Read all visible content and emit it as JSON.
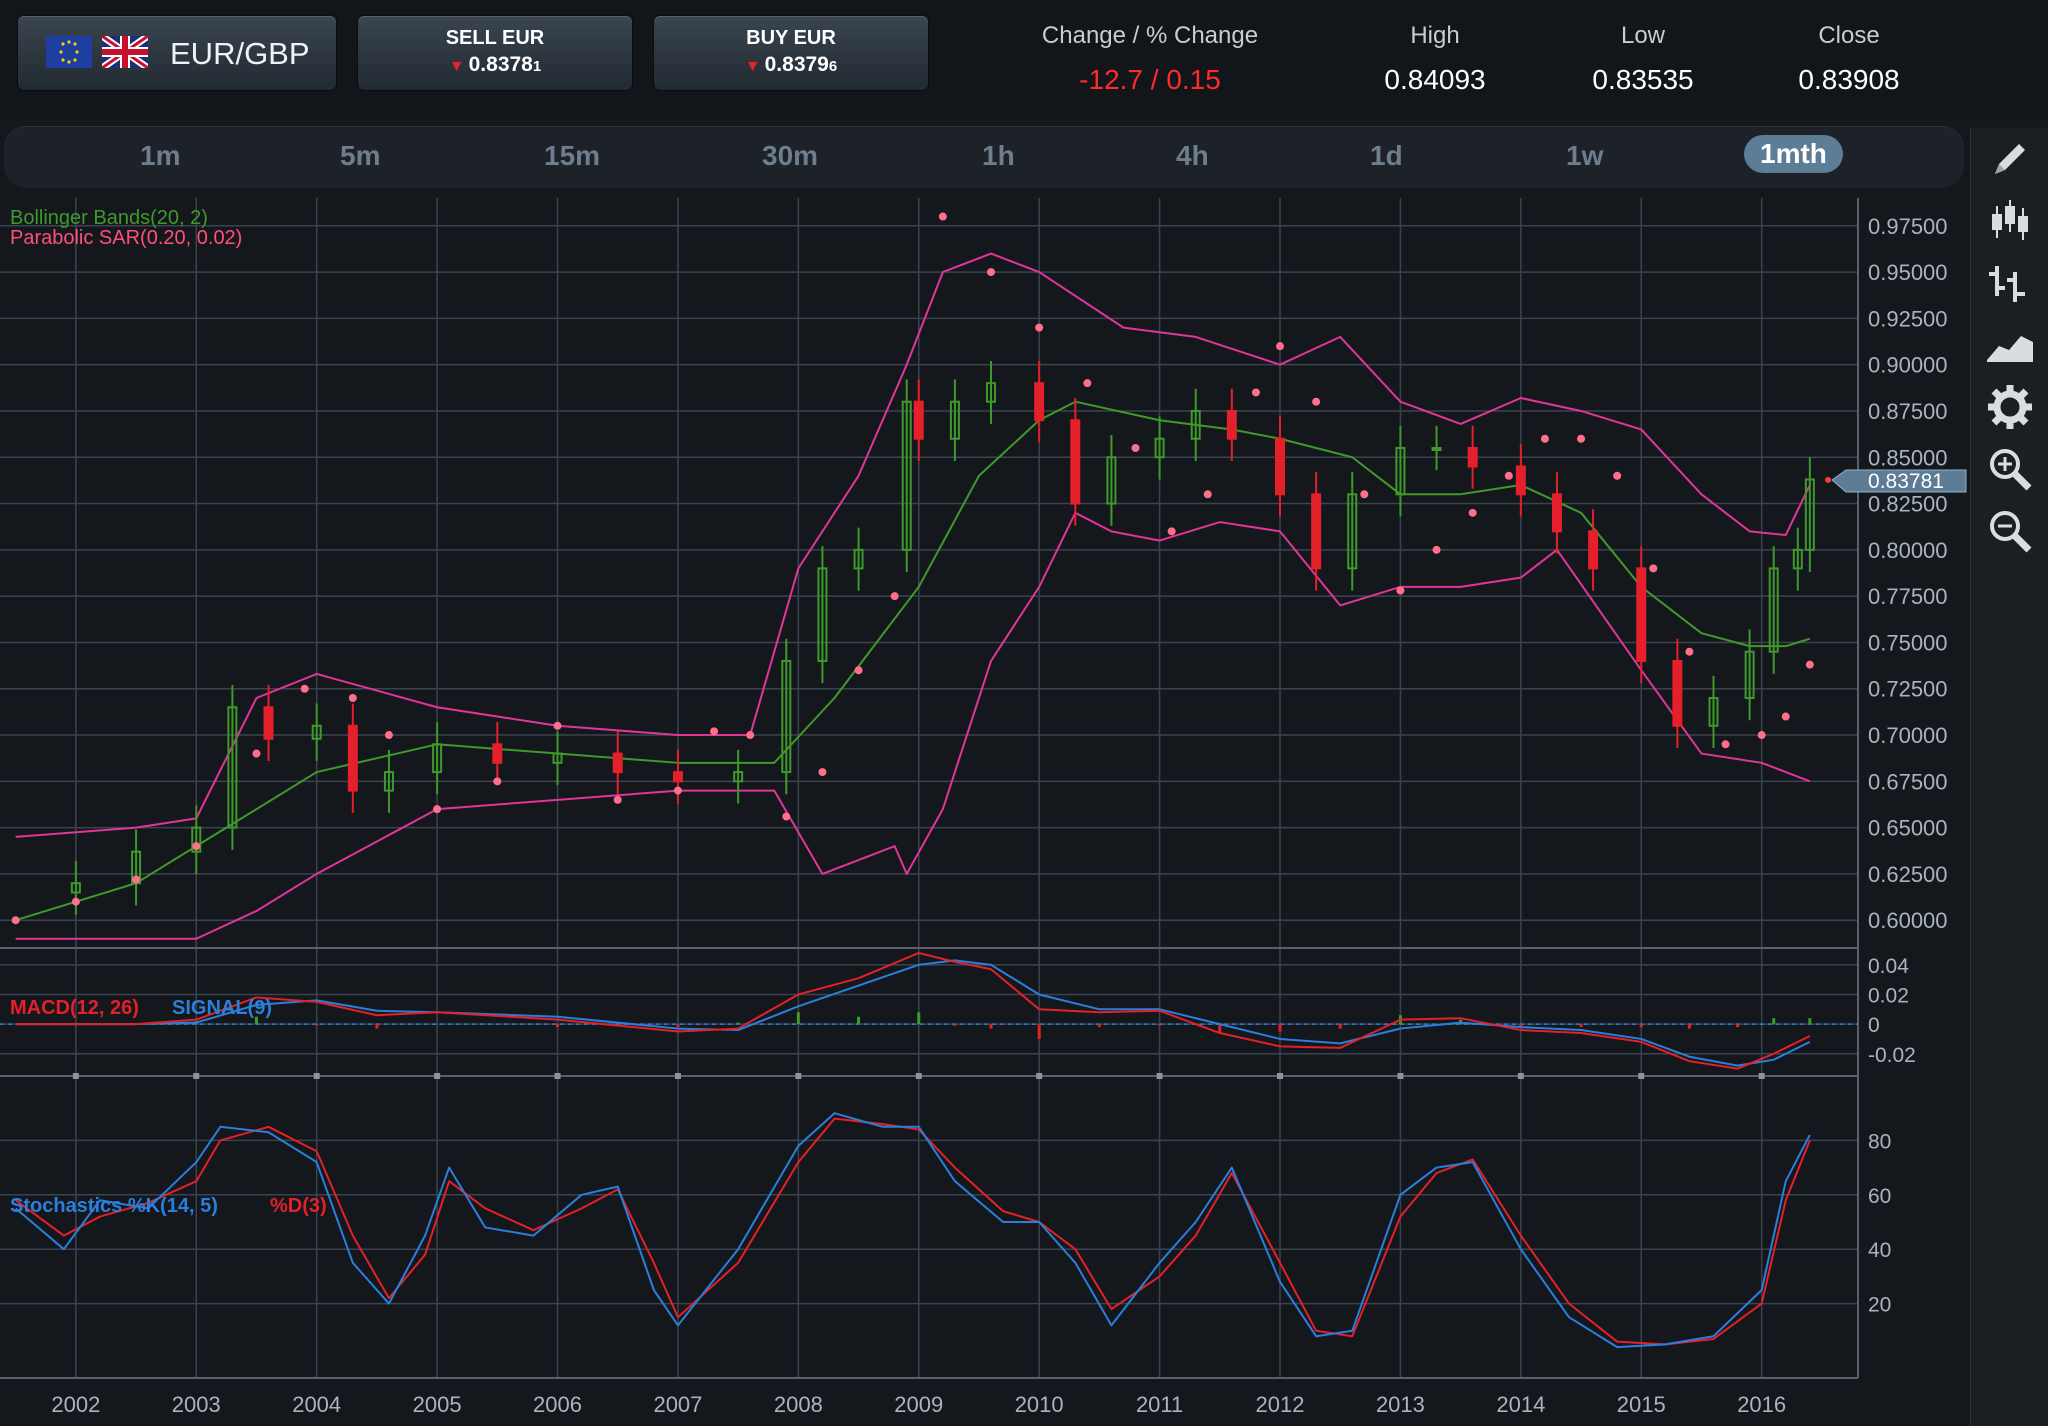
{
  "instrument": {
    "pair": "EUR/GBP",
    "base_flag": "eu-flag-icon",
    "quote_flag": "uk-flag-icon"
  },
  "sell": {
    "label": "SELL EUR",
    "price_main": "0.8378",
    "price_pip": "1",
    "direction": "down"
  },
  "buy": {
    "label": "BUY EUR",
    "price_main": "0.8379",
    "price_pip": "6",
    "direction": "down"
  },
  "stats": {
    "change_header": "Change / % Change",
    "change_value": "-12.7 / 0.15",
    "high_header": "High",
    "high_value": "0.84093",
    "low_header": "Low",
    "low_value": "0.83535",
    "close_header": "Close",
    "close_value": "0.83908"
  },
  "timeframes": [
    {
      "label": "1m",
      "active": false
    },
    {
      "label": "5m",
      "active": false
    },
    {
      "label": "15m",
      "active": false
    },
    {
      "label": "30m",
      "active": false
    },
    {
      "label": "1h",
      "active": false
    },
    {
      "label": "4h",
      "active": false
    },
    {
      "label": "1d",
      "active": false
    },
    {
      "label": "1w",
      "active": false
    },
    {
      "label": "1mth",
      "active": true
    }
  ],
  "tools": [
    "pencil-icon",
    "candlestick-icon",
    "ohlc-bars-icon",
    "area-chart-icon",
    "gear-icon",
    "zoom-in-icon",
    "zoom-out-icon"
  ],
  "colors": {
    "up": "#3e9a2a",
    "down": "#e4202a",
    "bb_band": "#e0359a",
    "bb_mid": "#3e9a2a",
    "sar": "#ff6f8c",
    "macd": "#e4202a",
    "signal": "#2a7fdc",
    "stoch_k": "#2a7fdc",
    "stoch_d": "#e4202a",
    "grid": "#3a4450"
  },
  "chart_data": {
    "type": "line",
    "price_panel": {
      "indicator_bb": "Bollinger Bands(20, 2)",
      "indicator_sar": "Parabolic SAR(0.20, 0.02)",
      "y_ticks": [
        "0.97500",
        "0.95000",
        "0.92500",
        "0.90000",
        "0.87500",
        "0.85000",
        "0.82500",
        "0.80000",
        "0.77500",
        "0.75000",
        "0.72500",
        "0.70000",
        "0.67500",
        "0.65000",
        "0.62500",
        "0.60000"
      ],
      "ylim": [
        0.585,
        0.99
      ],
      "current_price_label": "0.83781",
      "current_price": 0.83781,
      "close_series": {
        "x": [
          2001.5,
          2002.0,
          2002.5,
          2003.0,
          2003.3,
          2003.6,
          2004.0,
          2004.3,
          2004.6,
          2005.0,
          2005.5,
          2006.0,
          2006.5,
          2007.0,
          2007.5,
          2007.9,
          2008.2,
          2008.5,
          2008.9,
          2009.0,
          2009.3,
          2009.6,
          2010.0,
          2010.3,
          2010.6,
          2011.0,
          2011.3,
          2011.6,
          2012.0,
          2012.3,
          2012.6,
          2013.0,
          2013.3,
          2013.6,
          2014.0,
          2014.3,
          2014.6,
          2015.0,
          2015.3,
          2015.6,
          2015.9,
          2016.1,
          2016.3,
          2016.4
        ],
        "y": [
          0.615,
          0.62,
          0.637,
          0.65,
          0.715,
          0.698,
          0.705,
          0.67,
          0.68,
          0.695,
          0.685,
          0.69,
          0.68,
          0.675,
          0.68,
          0.74,
          0.79,
          0.8,
          0.88,
          0.86,
          0.88,
          0.89,
          0.87,
          0.825,
          0.85,
          0.86,
          0.875,
          0.86,
          0.83,
          0.79,
          0.83,
          0.855,
          0.855,
          0.845,
          0.83,
          0.81,
          0.79,
          0.74,
          0.705,
          0.72,
          0.745,
          0.79,
          0.8,
          0.838
        ]
      },
      "bollinger_upper": {
        "x": [
          2001.5,
          2002.5,
          2003.0,
          2003.5,
          2004.0,
          2005.0,
          2006.0,
          2007.0,
          2007.6,
          2008.0,
          2008.5,
          2008.9,
          2009.2,
          2009.6,
          2010.0,
          2010.7,
          2011.3,
          2012.0,
          2012.5,
          2013.0,
          2013.5,
          2014.0,
          2014.5,
          2015.0,
          2015.5,
          2015.9,
          2016.2,
          2016.4
        ],
        "y": [
          0.645,
          0.65,
          0.655,
          0.72,
          0.733,
          0.715,
          0.705,
          0.7,
          0.7,
          0.79,
          0.84,
          0.9,
          0.95,
          0.96,
          0.95,
          0.92,
          0.915,
          0.9,
          0.915,
          0.88,
          0.868,
          0.882,
          0.875,
          0.865,
          0.83,
          0.81,
          0.808,
          0.835
        ]
      },
      "bollinger_middle": {
        "x": [
          2001.5,
          2002.5,
          2003.0,
          2004.0,
          2005.0,
          2006.0,
          2007.0,
          2007.8,
          2008.3,
          2009.0,
          2009.5,
          2010.0,
          2010.3,
          2011.0,
          2011.6,
          2012.0,
          2012.6,
          2013.0,
          2013.5,
          2014.0,
          2014.5,
          2015.0,
          2015.5,
          2015.9,
          2016.2,
          2016.4
        ],
        "y": [
          0.6,
          0.62,
          0.64,
          0.68,
          0.695,
          0.69,
          0.685,
          0.685,
          0.72,
          0.78,
          0.84,
          0.87,
          0.88,
          0.87,
          0.865,
          0.86,
          0.85,
          0.83,
          0.83,
          0.835,
          0.82,
          0.78,
          0.755,
          0.748,
          0.748,
          0.752
        ]
      },
      "bollinger_lower": {
        "x": [
          2001.5,
          2002.5,
          2003.0,
          2003.5,
          2004.0,
          2005.0,
          2006.0,
          2007.0,
          2007.8,
          2008.2,
          2008.8,
          2008.9,
          2009.2,
          2009.6,
          2010.0,
          2010.3,
          2010.6,
          2011.0,
          2011.5,
          2012.0,
          2012.5,
          2013.0,
          2013.5,
          2014.0,
          2014.3,
          2015.0,
          2015.5,
          2016.0,
          2016.4
        ],
        "y": [
          0.59,
          0.59,
          0.59,
          0.605,
          0.625,
          0.66,
          0.665,
          0.67,
          0.67,
          0.625,
          0.64,
          0.625,
          0.66,
          0.74,
          0.78,
          0.82,
          0.81,
          0.805,
          0.815,
          0.81,
          0.77,
          0.78,
          0.78,
          0.785,
          0.8,
          0.735,
          0.69,
          0.685,
          0.675
        ]
      },
      "parabolic_sar": {
        "x": [
          2001.5,
          2002.0,
          2002.5,
          2003.0,
          2003.5,
          2003.9,
          2004.3,
          2004.6,
          2005.0,
          2005.5,
          2006.0,
          2006.5,
          2007.0,
          2007.3,
          2007.6,
          2007.9,
          2008.2,
          2008.5,
          2008.8,
          2009.2,
          2009.6,
          2010.0,
          2010.4,
          2010.8,
          2011.1,
          2011.4,
          2011.8,
          2012.0,
          2012.3,
          2012.7,
          2013.0,
          2013.3,
          2013.6,
          2013.9,
          2014.2,
          2014.5,
          2014.8,
          2015.1,
          2015.4,
          2015.7,
          2016.0,
          2016.2,
          2016.4
        ],
        "y": [
          0.6,
          0.61,
          0.622,
          0.64,
          0.69,
          0.725,
          0.72,
          0.7,
          0.66,
          0.675,
          0.705,
          0.665,
          0.67,
          0.702,
          0.7,
          0.656,
          0.68,
          0.735,
          0.775,
          0.98,
          0.95,
          0.92,
          0.89,
          0.855,
          0.81,
          0.83,
          0.885,
          0.91,
          0.88,
          0.83,
          0.778,
          0.8,
          0.82,
          0.84,
          0.86,
          0.86,
          0.84,
          0.79,
          0.745,
          0.695,
          0.7,
          0.71,
          0.738
        ]
      }
    },
    "macd_panel": {
      "label_macd": "MACD(12, 26)",
      "label_signal": "SIGNAL(9)",
      "y_ticks": [
        "0.04",
        "0.02",
        "0",
        "-0.02"
      ],
      "ylim": [
        -0.035,
        0.05
      ],
      "macd": {
        "x": [
          2001.5,
          2002.5,
          2003.0,
          2003.5,
          2004.0,
          2004.5,
          2005.0,
          2006.0,
          2007.0,
          2007.5,
          2008.0,
          2008.5,
          2009.0,
          2009.3,
          2009.6,
          2010.0,
          2010.5,
          2011.0,
          2011.5,
          2012.0,
          2012.5,
          2013.0,
          2013.5,
          2014.0,
          2014.5,
          2015.0,
          2015.4,
          2015.8,
          2016.1,
          2016.4
        ],
        "y": [
          0.0,
          0.0,
          0.003,
          0.018,
          0.015,
          0.006,
          0.008,
          0.003,
          -0.005,
          -0.003,
          0.02,
          0.031,
          0.048,
          0.042,
          0.037,
          0.01,
          0.008,
          0.009,
          -0.006,
          -0.015,
          -0.016,
          0.003,
          0.004,
          -0.004,
          -0.006,
          -0.012,
          -0.025,
          -0.03,
          -0.02,
          -0.008
        ]
      },
      "signal": {
        "x": [
          2001.5,
          2002.5,
          2003.0,
          2003.5,
          2004.0,
          2004.5,
          2005.0,
          2006.0,
          2007.0,
          2007.5,
          2008.0,
          2008.5,
          2009.0,
          2009.3,
          2009.6,
          2010.0,
          2010.5,
          2011.0,
          2011.5,
          2012.0,
          2012.5,
          2013.0,
          2013.5,
          2014.0,
          2014.5,
          2015.0,
          2015.4,
          2015.8,
          2016.1,
          2016.4
        ],
        "y": [
          0.0,
          0.0,
          0.001,
          0.013,
          0.016,
          0.009,
          0.008,
          0.005,
          -0.003,
          -0.004,
          0.012,
          0.026,
          0.04,
          0.043,
          0.04,
          0.02,
          0.01,
          0.01,
          0.0,
          -0.01,
          -0.013,
          -0.003,
          0.001,
          -0.002,
          -0.004,
          -0.01,
          -0.022,
          -0.028,
          -0.024,
          -0.012
        ]
      }
    },
    "stoch_panel": {
      "label_k": "Stochastics %K(14, 5)",
      "label_d": "%D(3)",
      "y_ticks": [
        "80",
        "60",
        "40",
        "20"
      ],
      "ylim": [
        0,
        100
      ],
      "k": {
        "x": [
          2001.5,
          2001.9,
          2002.2,
          2002.6,
          2003.0,
          2003.2,
          2003.6,
          2004.0,
          2004.3,
          2004.6,
          2004.9,
          2005.1,
          2005.4,
          2005.8,
          2006.2,
          2006.5,
          2006.8,
          2007.0,
          2007.5,
          2008.0,
          2008.3,
          2008.7,
          2009.0,
          2009.3,
          2009.7,
          2010.0,
          2010.3,
          2010.6,
          2011.0,
          2011.3,
          2011.6,
          2012.0,
          2012.3,
          2012.6,
          2013.0,
          2013.3,
          2013.6,
          2014.0,
          2014.4,
          2014.8,
          2015.2,
          2015.6,
          2016.0,
          2016.2,
          2016.4
        ],
        "y": [
          55,
          40,
          58,
          55,
          72,
          85,
          83,
          72,
          35,
          20,
          45,
          70,
          48,
          45,
          60,
          63,
          25,
          12,
          40,
          78,
          90,
          85,
          85,
          65,
          50,
          50,
          35,
          12,
          35,
          50,
          70,
          28,
          8,
          10,
          60,
          70,
          72,
          40,
          15,
          4,
          5,
          8,
          25,
          65,
          82
        ]
      },
      "d": {
        "x": [
          2001.5,
          2001.9,
          2002.2,
          2002.6,
          2003.0,
          2003.2,
          2003.6,
          2004.0,
          2004.3,
          2004.6,
          2004.9,
          2005.1,
          2005.4,
          2005.8,
          2006.2,
          2006.5,
          2006.8,
          2007.0,
          2007.5,
          2008.0,
          2008.3,
          2008.7,
          2009.0,
          2009.3,
          2009.7,
          2010.0,
          2010.3,
          2010.6,
          2011.0,
          2011.3,
          2011.6,
          2012.0,
          2012.3,
          2012.6,
          2013.0,
          2013.3,
          2013.6,
          2014.0,
          2014.4,
          2014.8,
          2015.2,
          2015.6,
          2016.0,
          2016.2,
          2016.4
        ],
        "y": [
          58,
          45,
          52,
          57,
          65,
          80,
          85,
          76,
          45,
          22,
          38,
          65,
          55,
          47,
          55,
          62,
          35,
          15,
          35,
          72,
          88,
          86,
          84,
          70,
          54,
          50,
          40,
          18,
          30,
          45,
          68,
          35,
          10,
          8,
          52,
          68,
          73,
          45,
          20,
          6,
          5,
          7,
          20,
          58,
          80
        ]
      }
    },
    "x_ticks": [
      "2002",
      "2003",
      "2004",
      "2005",
      "2006",
      "2007",
      "2008",
      "2009",
      "2010",
      "2011",
      "2012",
      "2013",
      "2014",
      "2015",
      "2016"
    ],
    "xlim": [
      2001.37,
      2016.8
    ]
  }
}
